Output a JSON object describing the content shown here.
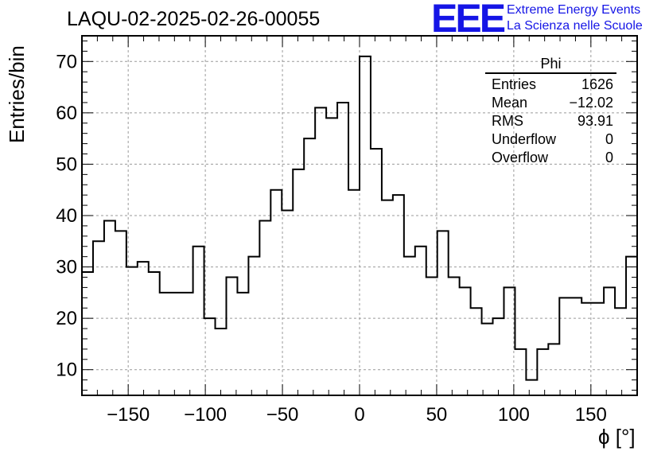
{
  "header": {
    "title": "LAQU-02-2025-02-26-00055"
  },
  "logo": {
    "mark": "EEE",
    "line1": "Extreme Energy Events",
    "line2": "La Scienza nelle Scuole"
  },
  "stats": {
    "name": "Phi",
    "rows": [
      {
        "label": "Entries",
        "value": "1626"
      },
      {
        "label": "Mean",
        "value": "−12.02"
      },
      {
        "label": "RMS",
        "value": "93.91"
      },
      {
        "label": "Underflow",
        "value": "0"
      },
      {
        "label": "Overflow",
        "value": "0"
      }
    ]
  },
  "chart_data": {
    "type": "histogram",
    "xlabel": "ϕ [°]",
    "ylabel": "Entries/bin",
    "xlim": [
      -180,
      180
    ],
    "ylim": [
      5,
      75
    ],
    "xticks": [
      -150,
      -100,
      -50,
      0,
      50,
      100,
      150
    ],
    "xtick_labels": [
      "−150",
      "−100",
      "−50",
      "0",
      "50",
      "100",
      "150"
    ],
    "yticks": [
      10,
      20,
      30,
      40,
      50,
      60,
      70
    ],
    "grid": true,
    "bin_width": 7.2,
    "bin_edges_start": -180,
    "values": [
      29,
      35,
      39,
      37,
      30,
      31,
      29,
      25,
      25,
      25,
      34,
      20,
      18,
      28,
      25,
      32,
      39,
      45,
      41,
      49,
      55,
      61,
      59,
      62,
      45,
      71,
      53,
      43,
      44,
      32,
      34,
      28,
      37,
      28,
      26,
      22,
      19,
      20,
      26,
      14,
      8,
      14,
      15,
      24,
      24,
      23,
      23,
      26,
      22,
      32
    ],
    "color": "#000000"
  }
}
